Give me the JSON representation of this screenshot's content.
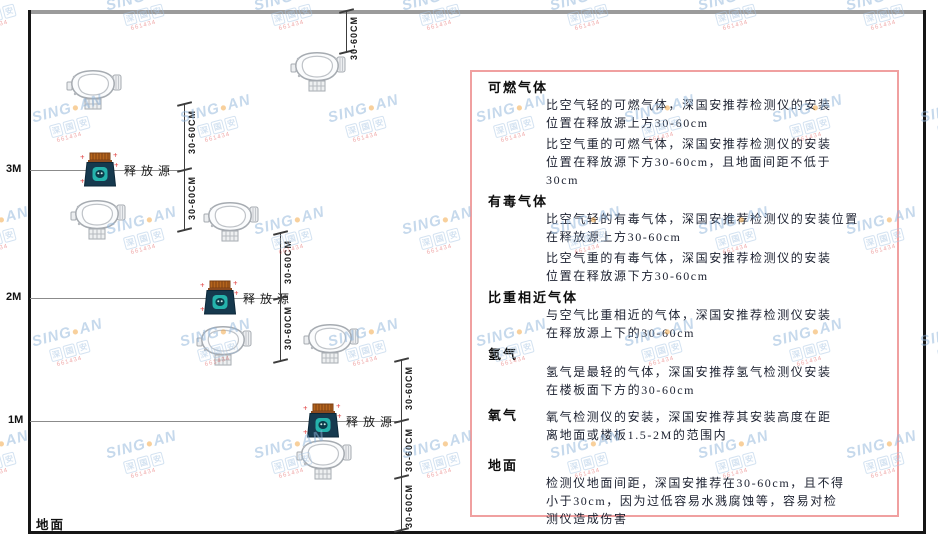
{
  "watermark": {
    "brand_left": "SING",
    "brand_dot": "●",
    "brand_right": "AN",
    "cjk": "深国安",
    "code": "661434"
  },
  "colors": {
    "panel_border": "#f0a0a0",
    "source_screen_teal": "#25b2ac",
    "source_cap_orange": "#b5651d",
    "watermark_blue": "#8fb4da",
    "watermark_red": "#e05252"
  },
  "diagram": {
    "labels": {
      "h3": "3M",
      "h2": "2M",
      "h1": "1M",
      "ground": "地面",
      "source": "释放源",
      "dim": "30-60CM"
    }
  },
  "panel": {
    "sections": [
      {
        "heading": "可燃气体",
        "paragraphs": [
          [
            "比空气轻的可燃气体，深国安推荐检测仪的安装",
            "位置在释放源上方30-60cm"
          ],
          [
            "比空气重的可燃气体，深国安推荐检测仪的安装",
            "位置在释放源下方30-60cm，且地面间距不低于",
            "30cm"
          ]
        ]
      },
      {
        "heading": "有毒气体",
        "paragraphs": [
          [
            "比空气轻的有毒气体，深国安推荐检测仪的安装位置",
            "在释放源上方30-60cm"
          ],
          [
            "比空气重的有毒气体，深国安推荐检测仪的安装",
            "位置在释放源下方30-60cm"
          ]
        ]
      },
      {
        "heading": "比重相近气体",
        "paragraphs": [
          [
            "与空气比重相近的气体，深国安推荐检测仪安装",
            "在释放源上下的30-60cm"
          ]
        ]
      },
      {
        "heading": "氢气",
        "paragraphs": [
          [
            "氢气是最轻的气体，深国安推荐氢气检测仪安装",
            "在楼板面下方的30-60cm"
          ]
        ]
      },
      {
        "heading": "氧气",
        "paragraphs": [
          [
            "氧气检测仪的安装，深国安推荐其安装高度在距",
            "离地面或楼板1.5-2M的范围内"
          ]
        ]
      },
      {
        "heading": "地面",
        "paragraphs": [
          [
            "检测仪地面间距，深国安推荐在30-60cm，且不得",
            "小于30cm，因为过低容易水溅腐蚀等，容易对检",
            "测仪造成伤害"
          ]
        ]
      }
    ]
  }
}
